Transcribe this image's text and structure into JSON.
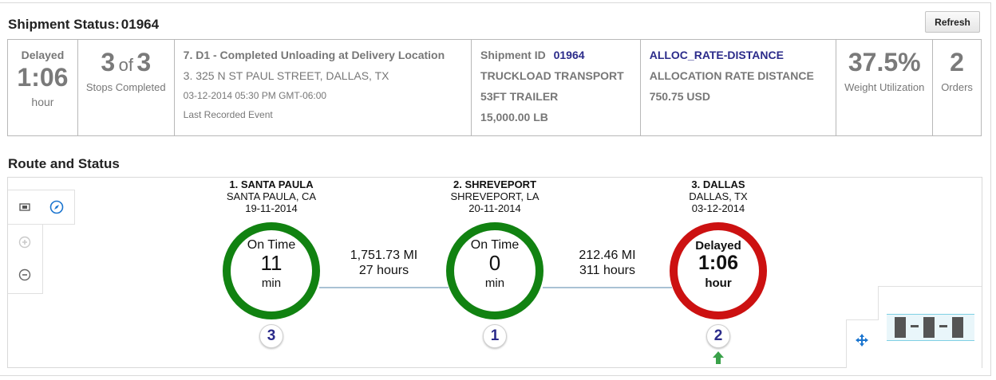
{
  "header": {
    "title_label": "Shipment Status:",
    "title_id": "01964",
    "refresh_label": "Refresh"
  },
  "summary": {
    "status": {
      "label": "Delayed",
      "value": "1:06",
      "unit": "hour"
    },
    "stops": {
      "completed": "3",
      "of_label": "of",
      "total": "3",
      "caption": "Stops Completed"
    },
    "event": {
      "name": "7. D1 - Completed Unloading at Delivery Location",
      "address": "3. 325 N ST PAUL STREET, DALLAS, TX",
      "timestamp": "03-12-2014 05:30 PM GMT-06:00",
      "caption": "Last Recorded Event"
    },
    "shipment": {
      "id_label": "Shipment ID",
      "id_value": "01964",
      "mode": "TRUCKLOAD TRANSPORT",
      "equipment": "53FT TRAILER",
      "weight": "15,000.00 LB"
    },
    "rate": {
      "code": "ALLOC_RATE-DISTANCE",
      "name": "ALLOCATION RATE DISTANCE",
      "amount": "750.75 USD"
    },
    "weight_util": {
      "value": "37.5%",
      "caption": "Weight Utilization"
    },
    "orders": {
      "value": "2",
      "caption": "Orders"
    }
  },
  "route": {
    "section_title": "Route and Status",
    "stops": [
      {
        "name": "1. SANTA PAULA",
        "location": "SANTA PAULA, CA",
        "date": "19-11-2014",
        "status": "On Time",
        "value": "11",
        "unit": "min",
        "badge": "3",
        "color": "#118211"
      },
      {
        "name": "2. SHREVEPORT",
        "location": "SHREVEPORT, LA",
        "date": "20-11-2014",
        "status": "On Time",
        "value": "0",
        "unit": "min",
        "badge": "1",
        "color": "#118211"
      },
      {
        "name": "3. DALLAS",
        "location": "DALLAS, TX",
        "date": "03-12-2014",
        "status": "Delayed",
        "value": "1:06",
        "unit": "hour",
        "badge": "2",
        "color": "#cc1111"
      }
    ],
    "legs": [
      {
        "distance": "1,751.73 MI",
        "duration": "27 hours"
      },
      {
        "distance": "212.46 MI",
        "duration": "311 hours"
      }
    ]
  },
  "colors": {
    "link": "#2b2b8a",
    "on_time": "#118211",
    "delayed": "#cc1111",
    "arrow": "#3aa14a"
  }
}
